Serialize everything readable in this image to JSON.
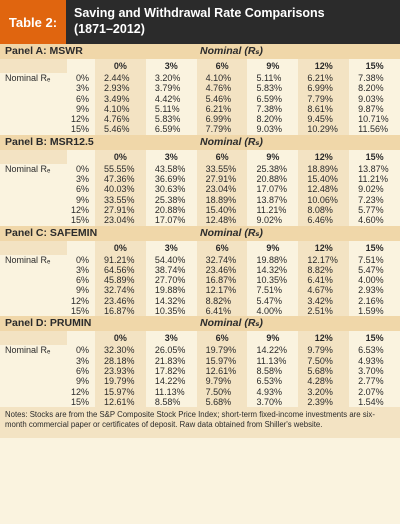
{
  "header": {
    "badge": "Table 2:",
    "title_line1": "Saving and Withdrawal Rate Comparisons",
    "title_line2": "(1871–2012)"
  },
  "nominal_label": "Nominal (Rₛ)",
  "row_label": "Nominal Rₑ",
  "col_heads": [
    "0%",
    "3%",
    "6%",
    "9%",
    "12%",
    "15%"
  ],
  "row_heads": [
    "0%",
    "3%",
    "6%",
    "9%",
    "12%",
    "15%"
  ],
  "panels": [
    {
      "title": "Panel A: MSWR",
      "rows": [
        [
          "2.44%",
          "3.20%",
          "4.10%",
          "5.11%",
          "6.21%",
          "7.38%"
        ],
        [
          "2.93%",
          "3.79%",
          "4.76%",
          "5.83%",
          "6.99%",
          "8.20%"
        ],
        [
          "3.49%",
          "4.42%",
          "5.46%",
          "6.59%",
          "7.79%",
          "9.03%"
        ],
        [
          "4.10%",
          "5.11%",
          "6.21%",
          "7.38%",
          "8.61%",
          "9.87%"
        ],
        [
          "4.76%",
          "5.83%",
          "6.99%",
          "8.20%",
          "9.45%",
          "10.71%"
        ],
        [
          "5.46%",
          "6.59%",
          "7.79%",
          "9.03%",
          "10.29%",
          "11.56%"
        ]
      ]
    },
    {
      "title": "Panel B: MSR12.5",
      "rows": [
        [
          "55.55%",
          "43.58%",
          "33.55%",
          "25.38%",
          "18.89%",
          "13.87%"
        ],
        [
          "47.36%",
          "36.69%",
          "27.91%",
          "20.88%",
          "15.40%",
          "11.21%"
        ],
        [
          "40.03%",
          "30.63%",
          "23.04%",
          "17.07%",
          "12.48%",
          "9.02%"
        ],
        [
          "33.55%",
          "25.38%",
          "18.89%",
          "13.87%",
          "10.06%",
          "7.23%"
        ],
        [
          "27.91%",
          "20.88%",
          "15.40%",
          "11.21%",
          "8.08%",
          "5.77%"
        ],
        [
          "23.04%",
          "17.07%",
          "12.48%",
          "9.02%",
          "6.46%",
          "4.60%"
        ]
      ]
    },
    {
      "title": "Panel C: SAFEMIN",
      "rows": [
        [
          "91.21%",
          "54.40%",
          "32.74%",
          "19.88%",
          "12.17%",
          "7.51%"
        ],
        [
          "64.56%",
          "38.74%",
          "23.46%",
          "14.32%",
          "8.82%",
          "5.47%"
        ],
        [
          "45.89%",
          "27.70%",
          "16.87%",
          "10.35%",
          "6.41%",
          "4.00%"
        ],
        [
          "32.74%",
          "19.88%",
          "12.17%",
          "7.51%",
          "4.67%",
          "2.93%"
        ],
        [
          "23.46%",
          "14.32%",
          "8.82%",
          "5.47%",
          "3.42%",
          "2.16%"
        ],
        [
          "16.87%",
          "10.35%",
          "6.41%",
          "4.00%",
          "2.51%",
          "1.59%"
        ]
      ]
    },
    {
      "title": "Panel D: PRUMIN",
      "rows": [
        [
          "32.30%",
          "26.05%",
          "19.79%",
          "14.22%",
          "9.79%",
          "6.53%"
        ],
        [
          "28.18%",
          "21.83%",
          "15.97%",
          "11.13%",
          "7.50%",
          "4.93%"
        ],
        [
          "23.93%",
          "17.82%",
          "12.61%",
          "8.58%",
          "5.68%",
          "3.70%"
        ],
        [
          "19.79%",
          "14.22%",
          "9.79%",
          "6.53%",
          "4.28%",
          "2.77%"
        ],
        [
          "15.97%",
          "11.13%",
          "7.50%",
          "4.93%",
          "3.20%",
          "2.07%"
        ],
        [
          "12.61%",
          "8.58%",
          "5.68%",
          "3.70%",
          "2.39%",
          "1.54%"
        ]
      ]
    }
  ],
  "notes": "Notes: Stocks are from the S&P Composite Stock Price Index; short-term fixed-income investments are six-month commercial paper or certificates of deposit. Raw data obtained from Shiller's website."
}
